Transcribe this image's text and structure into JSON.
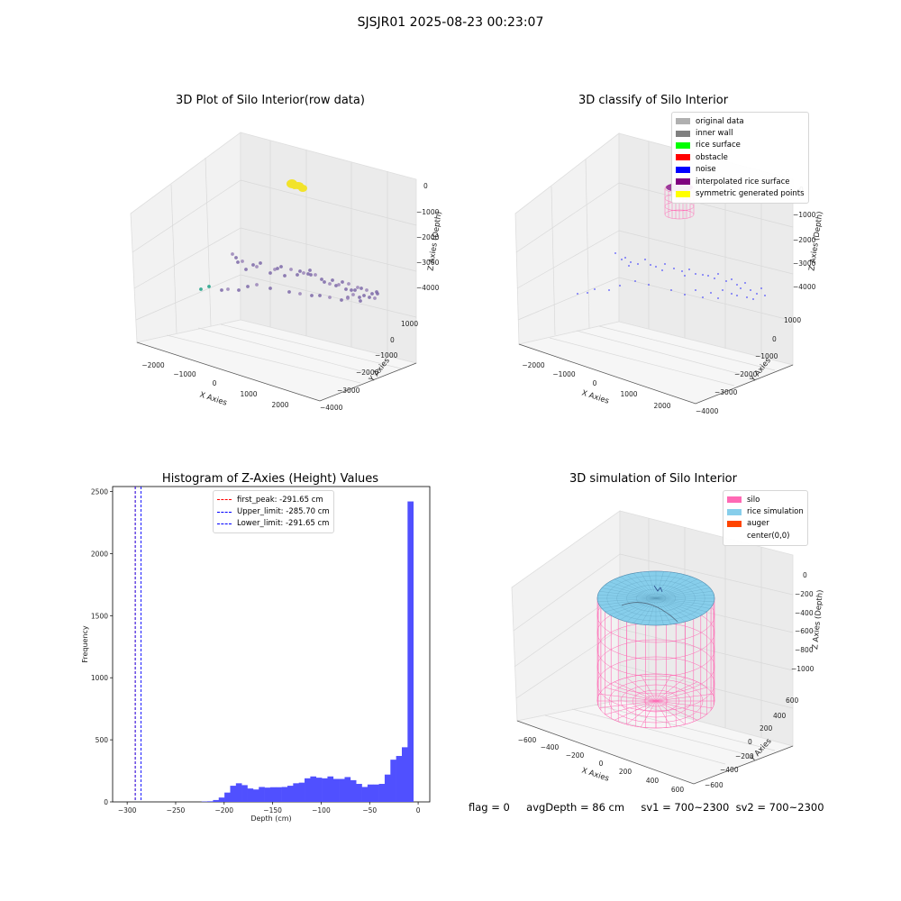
{
  "suptitle": "SJSJR01 2025-08-23 00:23:07",
  "panels": {
    "raw": {
      "title": "3D Plot of Silo Interior(row data)",
      "xlabel": "X Axies",
      "ylabel": "Y Axies",
      "zlabel": "Z Axies (Depth)",
      "xticks": [
        "−2000",
        "−1000",
        "0",
        "1000",
        "2000"
      ],
      "yticks": [
        "1000",
        "0",
        "−1000",
        "−2000",
        "−3000",
        "−4000"
      ],
      "zticks": [
        "0",
        "−1000",
        "−2000",
        "−3000",
        "−4000"
      ]
    },
    "classify": {
      "title": "3D classify of Silo Interior",
      "xlabel": "X Axies",
      "ylabel": "Y Axies",
      "zlabel": "Z Axies (Depth)",
      "xticks": [
        "−2000",
        "−1000",
        "0",
        "1000",
        "2000"
      ],
      "yticks": [
        "1000",
        "0",
        "−1000",
        "−2000",
        "−3000",
        "−4000"
      ],
      "zticks": [
        "0",
        "−1000",
        "−2000",
        "−3000",
        "−4000"
      ],
      "legend": [
        {
          "label": "original data",
          "color": "#b0b0b0"
        },
        {
          "label": "inner wall",
          "color": "#808080"
        },
        {
          "label": "rice surface",
          "color": "#00ff00"
        },
        {
          "label": "obstacle",
          "color": "#ff0000"
        },
        {
          "label": "noise",
          "color": "#0000ff"
        },
        {
          "label": "interpolated rice surface",
          "color": "#800080"
        },
        {
          "label": "symmetric generated points",
          "color": "#ffff00"
        }
      ]
    },
    "simulation": {
      "title": "3D simulation of Silo Interior",
      "xlabel": "X Axies",
      "ylabel": "Y Axies",
      "zlabel": "Z Axies (Depth)",
      "xticks": [
        "−600",
        "−400",
        "−200",
        "0",
        "200",
        "400",
        "600"
      ],
      "yticks": [
        "600",
        "400",
        "200",
        "0",
        "−200",
        "−400",
        "−600"
      ],
      "zticks": [
        "0",
        "−200",
        "−400",
        "−600",
        "−800",
        "−1000"
      ],
      "legend": [
        {
          "label": "silo",
          "color": "#ff69b4"
        },
        {
          "label": "rice simulation",
          "color": "#87ceeb"
        },
        {
          "label": "auger",
          "color": "#ff4500"
        },
        {
          "label": "center(0,0)",
          "color": "#ffffff"
        }
      ]
    }
  },
  "chart_data": {
    "type": "bar",
    "title": "Histogram of Z-Axies (Height) Values",
    "xlabel": "Depth (cm)",
    "ylabel": "Frequency",
    "xlim": [
      -315,
      12
    ],
    "ylim": [
      0,
      2540
    ],
    "xticks": [
      -300,
      -250,
      -200,
      -150,
      -100,
      -50,
      0
    ],
    "yticks": [
      0,
      500,
      1000,
      1500,
      2000,
      2500
    ],
    "bin_edges_start": -300,
    "bin_width": 5.9,
    "values": [
      0,
      0,
      0,
      0,
      0,
      0,
      0,
      0,
      0,
      0,
      0,
      0,
      0,
      3,
      5,
      15,
      35,
      75,
      130,
      150,
      135,
      108,
      100,
      120,
      115,
      118,
      118,
      120,
      130,
      150,
      155,
      190,
      205,
      195,
      190,
      205,
      185,
      185,
      200,
      175,
      145,
      120,
      140,
      140,
      145,
      220,
      340,
      370,
      440,
      2420
    ],
    "lines": [
      {
        "label": "first_peak: -291.65 cm",
        "x": -291.65,
        "color": "#ff0000"
      },
      {
        "label": "Upper_limit: -285.70 cm",
        "x": -285.7,
        "color": "#0000ff"
      },
      {
        "label": "Lower_limit: -291.65 cm",
        "x": -291.65,
        "color": "#0000ff"
      }
    ],
    "bar_color": "#5050ff"
  },
  "status": {
    "flag": "flag = 0",
    "avg_depth": "avgDepth = 86 cm",
    "sv1": "sv1 = 700~2300",
    "sv2": "sv2 = 700~2300"
  }
}
